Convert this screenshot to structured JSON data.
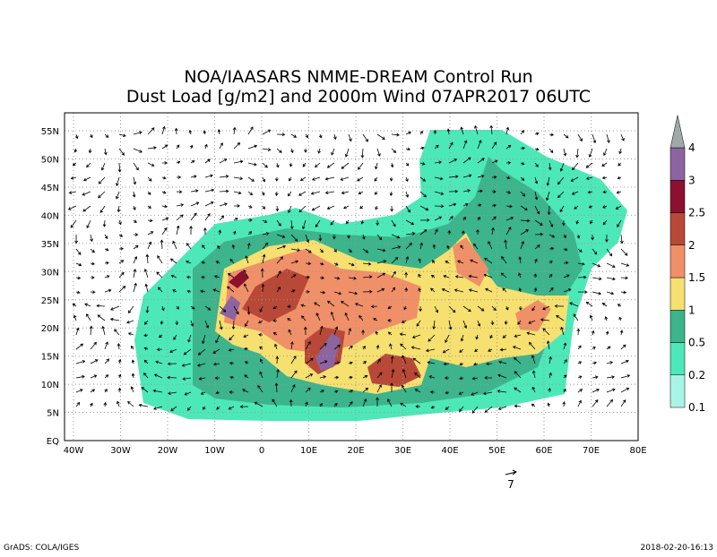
{
  "title": [
    "NOA/IAASARS NMME-DREAM Control Run",
    "Dust Load [g/m2] and 2000m Wind 07APR2017 06UTC"
  ],
  "x_axis_labels": [
    "40W",
    "30W",
    "20W",
    "10W",
    "0",
    "10E",
    "20E",
    "30E",
    "40E",
    "50E",
    "60E",
    "70E",
    "80E"
  ],
  "y_axis_labels": [
    "EQ",
    "5N",
    "10N",
    "15N",
    "20N",
    "25N",
    "30N",
    "35N",
    "40N",
    "45N",
    "50N",
    "55N"
  ],
  "colorbar": {
    "levels": [
      "0.1",
      "0.2",
      "0.5",
      "1",
      "1.5",
      "2",
      "2.5",
      "3",
      "4"
    ],
    "colors": [
      "#a8f5e8",
      "#4de8b8",
      "#3cb48c",
      "#f5e070",
      "#f09068",
      "#b84838",
      "#8c1030",
      "#8c64a0",
      "#a0a8a8"
    ]
  },
  "wind_reference": "7",
  "footer": {
    "left": "GrADS: COLA/IGES",
    "right": "2018-02-20-16:13"
  }
}
